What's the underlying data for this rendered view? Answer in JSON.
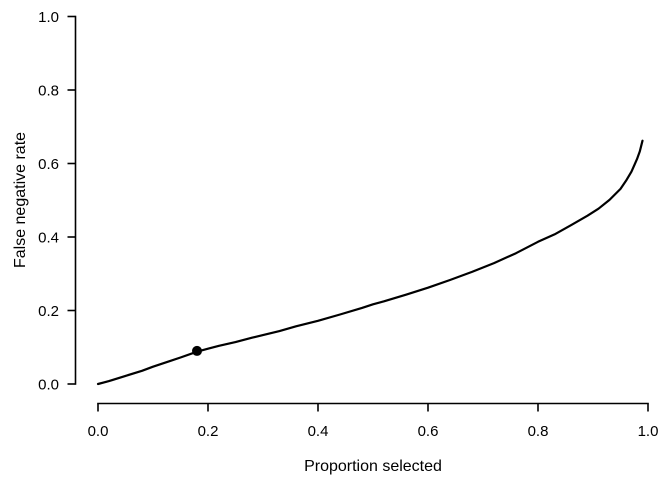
{
  "figure": {
    "background": "#ffffff"
  },
  "chart_data": {
    "type": "line",
    "title": "",
    "xlabel": "Proportion selected",
    "ylabel": "False negative rate",
    "xlim": [
      0.0,
      1.0
    ],
    "ylim": [
      0.0,
      1.0
    ],
    "grid": false,
    "legend": null,
    "ink_color": "#000000",
    "x_ticks": [
      0.0,
      0.2,
      0.4,
      0.6,
      0.8,
      1.0
    ],
    "x_tick_labels": [
      "0.0",
      "0.2",
      "0.4",
      "0.6",
      "0.8",
      "1.0"
    ],
    "y_ticks": [
      0.0,
      0.2,
      0.4,
      0.6,
      0.8,
      1.0
    ],
    "y_tick_labels": [
      "0.0",
      "0.2",
      "0.4",
      "0.6",
      "0.8",
      "1.0"
    ],
    "series": [
      {
        "name": "false-negative-rate-vs-proportion-selected",
        "color": "#000000",
        "points": [
          [
            0.0,
            0.0
          ],
          [
            0.02,
            0.008
          ],
          [
            0.05,
            0.022
          ],
          [
            0.08,
            0.036
          ],
          [
            0.1,
            0.047
          ],
          [
            0.13,
            0.062
          ],
          [
            0.15,
            0.072
          ],
          [
            0.18,
            0.088
          ],
          [
            0.2,
            0.096
          ],
          [
            0.22,
            0.104
          ],
          [
            0.25,
            0.114
          ],
          [
            0.28,
            0.126
          ],
          [
            0.3,
            0.133
          ],
          [
            0.33,
            0.144
          ],
          [
            0.36,
            0.157
          ],
          [
            0.4,
            0.172
          ],
          [
            0.44,
            0.189
          ],
          [
            0.48,
            0.207
          ],
          [
            0.5,
            0.217
          ],
          [
            0.52,
            0.225
          ],
          [
            0.56,
            0.243
          ],
          [
            0.6,
            0.262
          ],
          [
            0.64,
            0.283
          ],
          [
            0.68,
            0.305
          ],
          [
            0.72,
            0.329
          ],
          [
            0.76,
            0.356
          ],
          [
            0.8,
            0.387
          ],
          [
            0.83,
            0.407
          ],
          [
            0.86,
            0.432
          ],
          [
            0.89,
            0.458
          ],
          [
            0.91,
            0.477
          ],
          [
            0.93,
            0.501
          ],
          [
            0.95,
            0.531
          ],
          [
            0.96,
            0.553
          ],
          [
            0.97,
            0.578
          ],
          [
            0.98,
            0.612
          ],
          [
            0.985,
            0.633
          ],
          [
            0.99,
            0.662
          ]
        ]
      }
    ],
    "markers": [
      {
        "name": "selected-operating-point",
        "x": 0.18,
        "y": 0.09,
        "shape": "filled-circle",
        "color": "#000000"
      }
    ]
  }
}
